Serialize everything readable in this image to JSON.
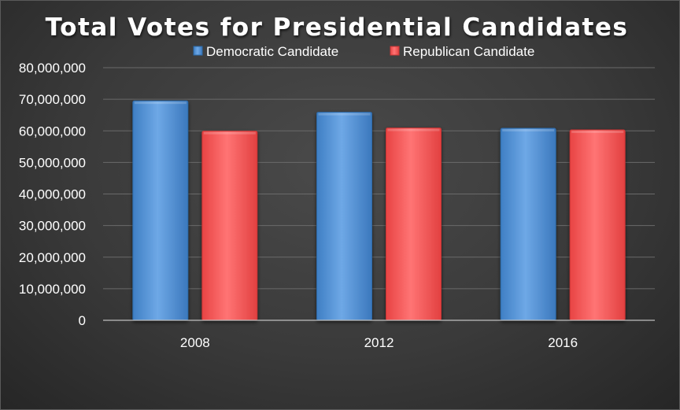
{
  "chart_data": {
    "type": "bar",
    "title": "Total Votes for Presidential Candidates",
    "categories": [
      "2008",
      "2012",
      "2016"
    ],
    "series": [
      {
        "name": "Democratic Candidate",
        "values": [
          69500000,
          65900000,
          60800000
        ],
        "color": "#5b9bd5"
      },
      {
        "name": "Republican Candidate",
        "values": [
          59900000,
          60900000,
          60300000
        ],
        "color": "#ff5a5a"
      }
    ],
    "ylim": [
      0,
      80000000
    ],
    "yticks": [
      "0",
      "10,000,000",
      "20,000,000",
      "30,000,000",
      "40,000,000",
      "50,000,000",
      "60,000,000",
      "70,000,000",
      "80,000,000"
    ],
    "legend_position": "top",
    "grid": true
  }
}
